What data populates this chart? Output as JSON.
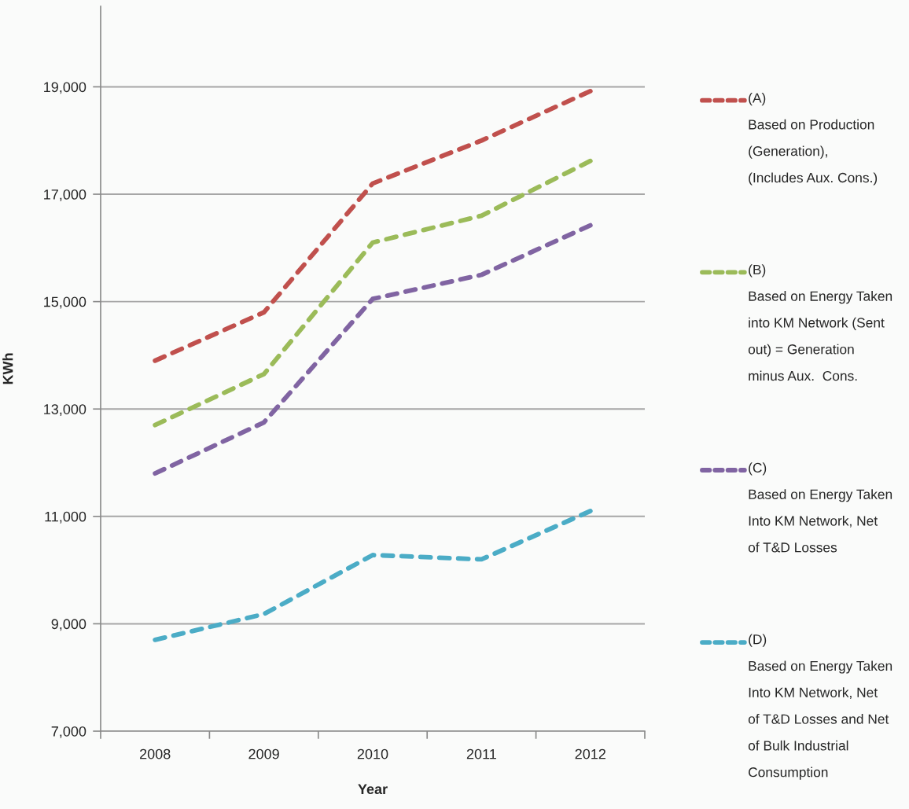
{
  "chart_data": {
    "type": "line",
    "xlabel": "Year",
    "ylabel": "KWh",
    "categories": [
      "2008",
      "2009",
      "2010",
      "2011",
      "2012"
    ],
    "series": [
      {
        "name": "(A)\nBased on Production\n(Generation),\n(Includes Aux. Cons.)",
        "color": "#c0504d",
        "values": [
          13900,
          14800,
          17200,
          18000,
          18920
        ]
      },
      {
        "name": "(B)\nBased on Energy Taken\ninto KM Network (Sent\nout) = Generation\nminus Aux.  Cons.",
        "color": "#9bbb59",
        "values": [
          12700,
          13650,
          16100,
          16600,
          17620
        ]
      },
      {
        "name": "(C)\nBased on Energy Taken\nInto KM Network, Net\nof T&D Losses",
        "color": "#8064a2",
        "values": [
          11800,
          12750,
          15050,
          15500,
          16420
        ]
      },
      {
        "name": "(D)\nBased on Energy Taken\nInto KM Network, Net\nof T&D Losses and Net\nof Bulk Industrial\nConsumption",
        "color": "#4bacc6",
        "values": [
          8700,
          9180,
          10280,
          10200,
          11100
        ]
      }
    ],
    "ylim": [
      7000,
      20500
    ],
    "yticks": [
      {
        "value": 7000,
        "label": "7,000"
      },
      {
        "value": 9000,
        "label": "9,000"
      },
      {
        "value": 11000,
        "label": "11,000"
      },
      {
        "value": 13000,
        "label": "13,000"
      },
      {
        "value": 15000,
        "label": "15,000"
      },
      {
        "value": 17000,
        "label": "17,000"
      },
      {
        "value": 19000,
        "label": "19,000"
      }
    ],
    "grid": "y",
    "legend": "right",
    "line_style": "dashed"
  }
}
